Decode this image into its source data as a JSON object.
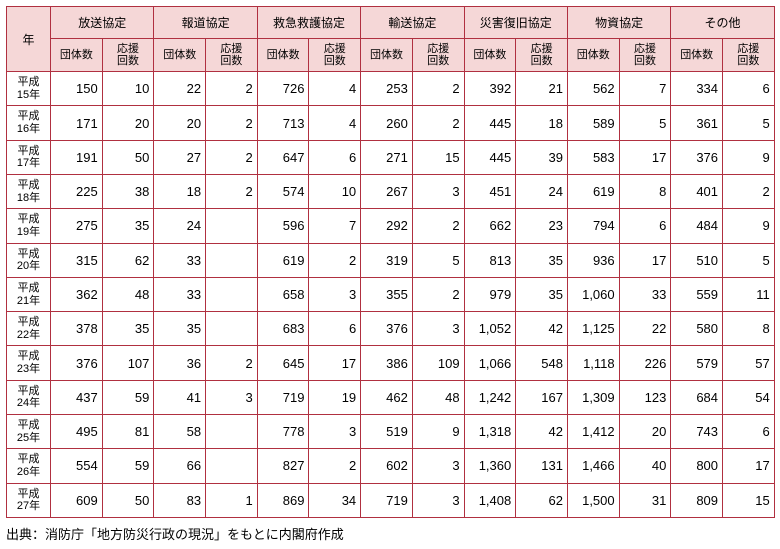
{
  "header": {
    "year_label": "年",
    "groups": [
      "放送協定",
      "報道協定",
      "救急救護協定",
      "輸送協定",
      "災害復旧協定",
      "物資協定",
      "その他"
    ],
    "subs": [
      "団体数",
      "応援\n回数"
    ]
  },
  "rows": [
    {
      "year": "平成\n15年",
      "cells": [
        "150",
        "10",
        "22",
        "2",
        "726",
        "4",
        "253",
        "2",
        "392",
        "21",
        "562",
        "7",
        "334",
        "6"
      ]
    },
    {
      "year": "平成\n16年",
      "cells": [
        "171",
        "20",
        "20",
        "2",
        "713",
        "4",
        "260",
        "2",
        "445",
        "18",
        "589",
        "5",
        "361",
        "5"
      ]
    },
    {
      "year": "平成\n17年",
      "cells": [
        "191",
        "50",
        "27",
        "2",
        "647",
        "6",
        "271",
        "15",
        "445",
        "39",
        "583",
        "17",
        "376",
        "9"
      ]
    },
    {
      "year": "平成\n18年",
      "cells": [
        "225",
        "38",
        "18",
        "2",
        "574",
        "10",
        "267",
        "3",
        "451",
        "24",
        "619",
        "8",
        "401",
        "2"
      ]
    },
    {
      "year": "平成\n19年",
      "cells": [
        "275",
        "35",
        "24",
        "",
        "596",
        "7",
        "292",
        "2",
        "662",
        "23",
        "794",
        "6",
        "484",
        "9"
      ]
    },
    {
      "year": "平成\n20年",
      "cells": [
        "315",
        "62",
        "33",
        "",
        "619",
        "2",
        "319",
        "5",
        "813",
        "35",
        "936",
        "17",
        "510",
        "5"
      ]
    },
    {
      "year": "平成\n21年",
      "cells": [
        "362",
        "48",
        "33",
        "",
        "658",
        "3",
        "355",
        "2",
        "979",
        "35",
        "1,060",
        "33",
        "559",
        "11"
      ]
    },
    {
      "year": "平成\n22年",
      "cells": [
        "378",
        "35",
        "35",
        "",
        "683",
        "6",
        "376",
        "3",
        "1,052",
        "42",
        "1,125",
        "22",
        "580",
        "8"
      ]
    },
    {
      "year": "平成\n23年",
      "cells": [
        "376",
        "107",
        "36",
        "2",
        "645",
        "17",
        "386",
        "109",
        "1,066",
        "548",
        "1,118",
        "226",
        "579",
        "57"
      ]
    },
    {
      "year": "平成\n24年",
      "cells": [
        "437",
        "59",
        "41",
        "3",
        "719",
        "19",
        "462",
        "48",
        "1,242",
        "167",
        "1,309",
        "123",
        "684",
        "54"
      ]
    },
    {
      "year": "平成\n25年",
      "cells": [
        "495",
        "81",
        "58",
        "",
        "778",
        "3",
        "519",
        "9",
        "1,318",
        "42",
        "1,412",
        "20",
        "743",
        "6"
      ]
    },
    {
      "year": "平成\n26年",
      "cells": [
        "554",
        "59",
        "66",
        "",
        "827",
        "2",
        "602",
        "3",
        "1,360",
        "131",
        "1,466",
        "40",
        "800",
        "17"
      ]
    },
    {
      "year": "平成\n27年",
      "cells": [
        "609",
        "50",
        "83",
        "1",
        "869",
        "34",
        "719",
        "3",
        "1,408",
        "62",
        "1,500",
        "31",
        "809",
        "15"
      ]
    }
  ],
  "source": "出典：消防庁「地方防災行政の現況」をもとに内閣府作成"
}
